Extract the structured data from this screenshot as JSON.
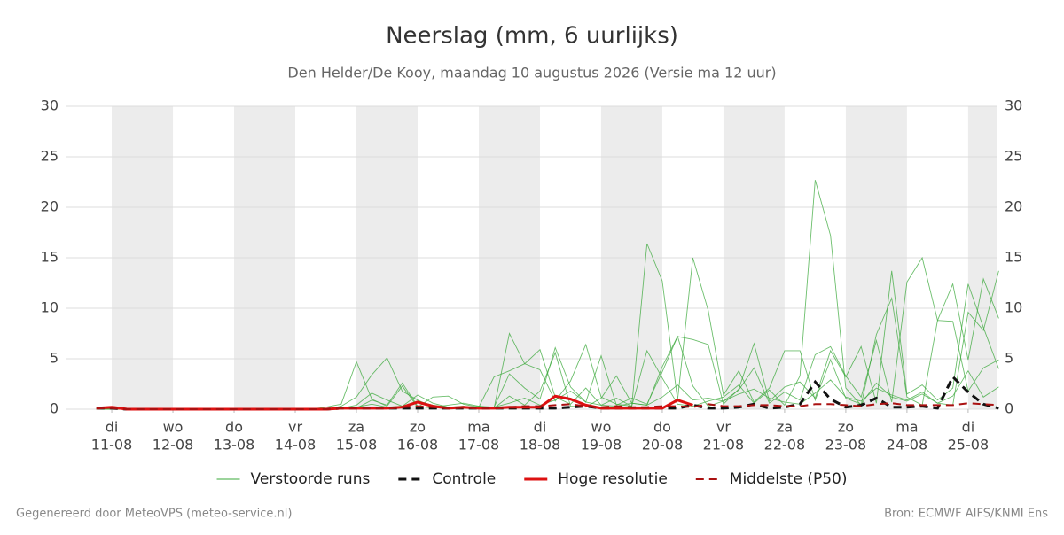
{
  "chart_data": {
    "type": "line",
    "title": "Neerslag (mm, 6 uurlijks)",
    "subtitle": "Den Helder/De Kooy, maandag 10 augustus 2026 (Versie ma 12 uur)",
    "footer_left": "Gegenereerd door MeteoVPS (meteo-service.nl)",
    "footer_right": "Bron: ECMWF AIFS/KNMI Ens",
    "xlim": [
      -0.74,
      14.48
    ],
    "xticks": [
      {
        "value": 0,
        "label": "11-08",
        "day": "di"
      },
      {
        "value": 1,
        "label": "12-08",
        "day": "wo"
      },
      {
        "value": 2,
        "label": "13-08",
        "day": "do"
      },
      {
        "value": 3,
        "label": "14-08",
        "day": "vr"
      },
      {
        "value": 4,
        "label": "15-08",
        "day": "za"
      },
      {
        "value": 5,
        "label": "16-08",
        "day": "zo"
      },
      {
        "value": 6,
        "label": "17-08",
        "day": "ma"
      },
      {
        "value": 7,
        "label": "18-08",
        "day": "di"
      },
      {
        "value": 8,
        "label": "19-08",
        "day": "wo"
      },
      {
        "value": 9,
        "label": "20-08",
        "day": "do"
      },
      {
        "value": 10,
        "label": "21-08",
        "day": "vr"
      },
      {
        "value": 11,
        "label": "22-08",
        "day": "za"
      },
      {
        "value": 12,
        "label": "23-08",
        "day": "zo"
      },
      {
        "value": 13,
        "label": "24-08",
        "day": "ma"
      },
      {
        "value": 14,
        "label": "25-08",
        "day": "di"
      }
    ],
    "ylim": [
      0,
      30
    ],
    "yticks": [
      0,
      5,
      10,
      15,
      20,
      25,
      30
    ],
    "grid": true,
    "x": [
      -0.25,
      0,
      0.25,
      0.5,
      0.75,
      1,
      1.25,
      1.5,
      1.75,
      2,
      2.25,
      2.5,
      2.75,
      3,
      3.25,
      3.5,
      3.75,
      4,
      4.25,
      4.5,
      4.75,
      5,
      5.25,
      5.5,
      5.75,
      6,
      6.25,
      6.5,
      6.75,
      7,
      7.25,
      7.5,
      7.75,
      8,
      8.25,
      8.5,
      8.75,
      9,
      9.25,
      9.5,
      9.75,
      10,
      10.25,
      10.5,
      10.75,
      11,
      11.25,
      11.5,
      11.75,
      12,
      12.25,
      12.5,
      12.75,
      13,
      13.25,
      13.5,
      13.75,
      14,
      14.25,
      14.5
    ],
    "ensemble": {
      "name": "Verstoorde runs",
      "color": "#3aa83a",
      "members": [
        [
          0,
          0,
          0,
          0,
          0,
          0,
          0,
          0,
          0,
          0,
          0,
          0,
          0,
          0,
          0,
          0.2,
          0.5,
          4.7,
          1.0,
          0.3,
          2.3,
          0.2,
          1.2,
          1.3,
          0.5,
          0.2,
          3.2,
          3.8,
          4.5,
          5.9,
          1.2,
          0.5,
          2.1,
          0.4,
          1.1,
          0.3,
          5.8,
          3.1,
          0.5,
          0.3,
          0.8,
          1.2,
          2.4,
          0.6,
          1.9,
          0.4,
          3.3,
          22.7,
          17.2,
          2.1,
          0.4,
          7.4,
          11.0,
          1.2,
          0.4,
          8.8,
          8.7,
          1.8,
          4.1,
          4.9
        ],
        [
          0,
          0,
          0,
          0,
          0,
          0,
          0,
          0,
          0,
          0,
          0,
          0,
          0,
          0,
          0,
          0,
          0.3,
          1.2,
          3.4,
          5.1,
          1.8,
          0.9,
          0.2,
          0.4,
          0.6,
          0.3,
          0.1,
          7.5,
          4.5,
          3.9,
          0.8,
          2.8,
          6.4,
          1.2,
          0.5,
          0.3,
          16.4,
          12.7,
          0.9,
          15.0,
          9.8,
          1.4,
          3.8,
          0.7,
          2.1,
          5.8,
          5.8,
          0.9,
          4.9,
          1.1,
          0.5,
          2.6,
          1.2,
          0.8,
          1.5,
          0.6,
          0.4,
          9.6,
          7.8,
          13.7
        ],
        [
          0,
          0,
          0,
          0,
          0,
          0,
          0,
          0,
          0,
          0,
          0,
          0,
          0,
          0,
          0,
          0,
          0.1,
          0.4,
          1.6,
          0.9,
          0.3,
          1.4,
          0.6,
          0.2,
          0.1,
          0.3,
          0.2,
          3.5,
          2.1,
          1.0,
          6.1,
          2.2,
          0.7,
          5.3,
          0.4,
          1.1,
          0.5,
          3.7,
          7.2,
          6.9,
          6.4,
          0.5,
          2.0,
          6.5,
          0.8,
          2.2,
          2.7,
          1.1,
          5.8,
          3.2,
          6.2,
          0.6,
          13.7,
          1.5,
          2.4,
          0.9,
          2.1,
          12.4,
          8.1,
          4.0
        ],
        [
          0,
          0,
          0,
          0,
          0,
          0,
          0,
          0,
          0,
          0,
          0,
          0,
          0,
          0,
          0,
          0,
          0.2,
          0.1,
          0.9,
          0.4,
          2.6,
          0.3,
          0.1,
          0.2,
          0.3,
          0.1,
          0.1,
          1.3,
          0.4,
          1.8,
          5.6,
          0.3,
          0.2,
          1.1,
          3.3,
          0.6,
          0.4,
          4.2,
          7.2,
          2.3,
          0.3,
          0.8,
          1.9,
          4.1,
          0.6,
          1.7,
          0.9,
          5.4,
          6.2,
          3.3,
          1.2,
          6.8,
          0.7,
          12.6,
          15.0,
          8.8,
          12.4,
          4.9,
          12.9,
          9.0
        ],
        [
          0,
          0,
          0,
          0,
          0,
          0,
          0,
          0,
          0,
          0,
          0,
          0,
          0,
          0,
          0,
          0,
          0.1,
          0.2,
          0.5,
          0.2,
          0.3,
          0.8,
          0.4,
          0.2,
          0.1,
          0.1,
          0.2,
          0.6,
          1.1,
          0.4,
          0.9,
          1.8,
          0.7,
          0.4,
          0.3,
          0.6,
          0.4,
          1.2,
          2.4,
          0.9,
          1.1,
          0.8,
          1.5,
          2.0,
          1.1,
          0.7,
          0.5,
          1.6,
          2.9,
          1.2,
          0.8,
          2.1,
          1.4,
          0.9,
          1.7,
          0.6,
          1.3,
          3.8,
          1.2,
          2.2
        ]
      ]
    },
    "series": [
      {
        "name": "Controle",
        "color": "#111111",
        "dashed": true,
        "width": 3,
        "values": [
          0.1,
          0.1,
          0,
          0,
          0,
          0,
          0,
          0,
          0,
          0,
          0,
          0,
          0,
          0,
          0,
          0,
          0.1,
          0.1,
          0.1,
          0.1,
          0.1,
          0.1,
          0.1,
          0.1,
          0.1,
          0.1,
          0.1,
          0.1,
          0.1,
          0.1,
          0.1,
          0.2,
          0.3,
          0.1,
          0.1,
          0.1,
          0.1,
          0.1,
          0.1,
          0.4,
          0.1,
          0.1,
          0.2,
          0.5,
          0.1,
          0.2,
          0.5,
          2.7,
          1.0,
          0.2,
          0.4,
          1.1,
          0.2,
          0.2,
          0.3,
          0.1,
          3.2,
          1.7,
          0.5,
          0.1
        ]
      },
      {
        "name": "Hoge resolutie",
        "color": "#dd1111",
        "dashed": false,
        "width": 3,
        "values": [
          0.1,
          0.2,
          0,
          0,
          0,
          0,
          0,
          0,
          0,
          0,
          0,
          0,
          0,
          0,
          0,
          0,
          0.1,
          0.1,
          0.1,
          0.1,
          0.2,
          0.7,
          0.3,
          0.1,
          0.2,
          0.1,
          0.1,
          0.2,
          0.2,
          0.2,
          1.3,
          1.0,
          0.4,
          0.1,
          0.1,
          0.1,
          0.1,
          0.1,
          0.9,
          0.4,
          null,
          null,
          null,
          null,
          null,
          null,
          null,
          null,
          null,
          null,
          null,
          null,
          null,
          null,
          null,
          null,
          null,
          null,
          null,
          null
        ]
      },
      {
        "name": "Middelste (P50)",
        "color": "#aa1111",
        "dashed": true,
        "width": 2,
        "values": [
          0.1,
          0.1,
          0,
          0,
          0,
          0,
          0,
          0,
          0,
          0,
          0,
          0,
          0,
          0,
          0,
          0,
          0.1,
          0.1,
          0.1,
          0.1,
          0.2,
          0.3,
          0.2,
          0.1,
          0.2,
          0.1,
          0.1,
          0.2,
          0.3,
          0.3,
          0.4,
          0.5,
          0.3,
          0.2,
          0.3,
          0.2,
          0.2,
          0.3,
          0.3,
          0.2,
          0.5,
          0.3,
          0.3,
          0.4,
          0.4,
          0.3,
          0.3,
          0.5,
          0.5,
          0.4,
          0.3,
          0.5,
          0.6,
          0.4,
          0.4,
          0.4,
          0.4,
          0.6,
          0.5,
          0.4
        ]
      }
    ]
  }
}
